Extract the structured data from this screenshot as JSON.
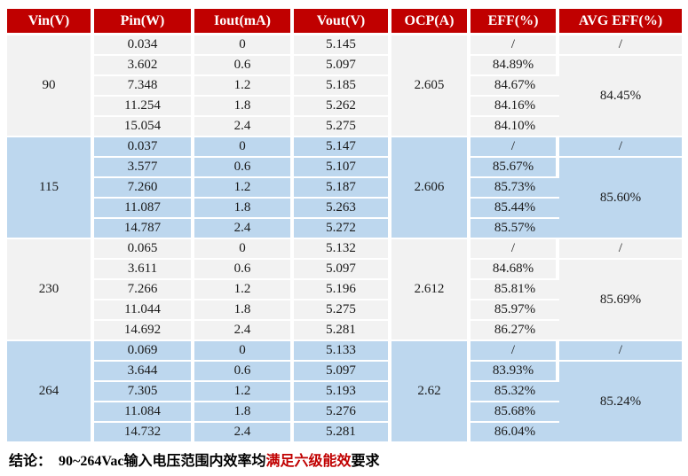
{
  "colors": {
    "header_bg": "#C00000",
    "header_text": "#FFFFFF",
    "row_gray": "#F2F2F2",
    "row_blue": "#BDD7EE",
    "grid_line": "#FFFFFF",
    "highlight_red": "#C00000"
  },
  "chart_data": {
    "type": "table",
    "title": "",
    "headers": [
      "Vin(V)",
      "Pin(W)",
      "Iout(mA)",
      "Vout(V)",
      "OCP(A)",
      "EFF(%)",
      "AVG EFF(%)"
    ],
    "groups": [
      {
        "vin": "90",
        "ocp": "2.605",
        "avg_eff_first": "/",
        "avg_eff": "84.45%",
        "tone": "gray",
        "rows": [
          {
            "pin": "0.034",
            "iout": "0",
            "vout": "5.145",
            "eff": "/"
          },
          {
            "pin": "3.602",
            "iout": "0.6",
            "vout": "5.097",
            "eff": "84.89%"
          },
          {
            "pin": "7.348",
            "iout": "1.2",
            "vout": "5.185",
            "eff": "84.67%"
          },
          {
            "pin": "11.254",
            "iout": "1.8",
            "vout": "5.262",
            "eff": "84.16%"
          },
          {
            "pin": "15.054",
            "iout": "2.4",
            "vout": "5.275",
            "eff": "84.10%"
          }
        ]
      },
      {
        "vin": "115",
        "ocp": "2.606",
        "avg_eff_first": "/",
        "avg_eff": "85.60%",
        "tone": "blue",
        "rows": [
          {
            "pin": "0.037",
            "iout": "0",
            "vout": "5.147",
            "eff": "/"
          },
          {
            "pin": "3.577",
            "iout": "0.6",
            "vout": "5.107",
            "eff": "85.67%"
          },
          {
            "pin": "7.260",
            "iout": "1.2",
            "vout": "5.187",
            "eff": "85.73%"
          },
          {
            "pin": "11.087",
            "iout": "1.8",
            "vout": "5.263",
            "eff": "85.44%"
          },
          {
            "pin": "14.787",
            "iout": "2.4",
            "vout": "5.272",
            "eff": "85.57%"
          }
        ]
      },
      {
        "vin": "230",
        "ocp": "2.612",
        "avg_eff_first": "/",
        "avg_eff": "85.69%",
        "tone": "gray",
        "rows": [
          {
            "pin": "0.065",
            "iout": "0",
            "vout": "5.132",
            "eff": "/"
          },
          {
            "pin": "3.611",
            "iout": "0.6",
            "vout": "5.097",
            "eff": "84.68%"
          },
          {
            "pin": "7.266",
            "iout": "1.2",
            "vout": "5.196",
            "eff": "85.81%"
          },
          {
            "pin": "11.044",
            "iout": "1.8",
            "vout": "5.275",
            "eff": "85.97%"
          },
          {
            "pin": "14.692",
            "iout": "2.4",
            "vout": "5.281",
            "eff": "86.27%"
          }
        ]
      },
      {
        "vin": "264",
        "ocp": "2.62",
        "avg_eff_first": "/",
        "avg_eff": "85.24%",
        "tone": "blue",
        "rows": [
          {
            "pin": "0.069",
            "iout": "0",
            "vout": "5.133",
            "eff": "/"
          },
          {
            "pin": "3.644",
            "iout": "0.6",
            "vout": "5.097",
            "eff": "83.93%"
          },
          {
            "pin": "7.305",
            "iout": "1.2",
            "vout": "5.193",
            "eff": "85.32%"
          },
          {
            "pin": "11.084",
            "iout": "1.8",
            "vout": "5.276",
            "eff": "85.68%"
          },
          {
            "pin": "14.732",
            "iout": "2.4",
            "vout": "5.281",
            "eff": "86.04%"
          }
        ]
      }
    ]
  },
  "conclusion": {
    "prefix": "结论：",
    "body": "90~264Vac输入电压范围内效率均",
    "highlight": "满足六级能效",
    "suffix": "要求"
  }
}
